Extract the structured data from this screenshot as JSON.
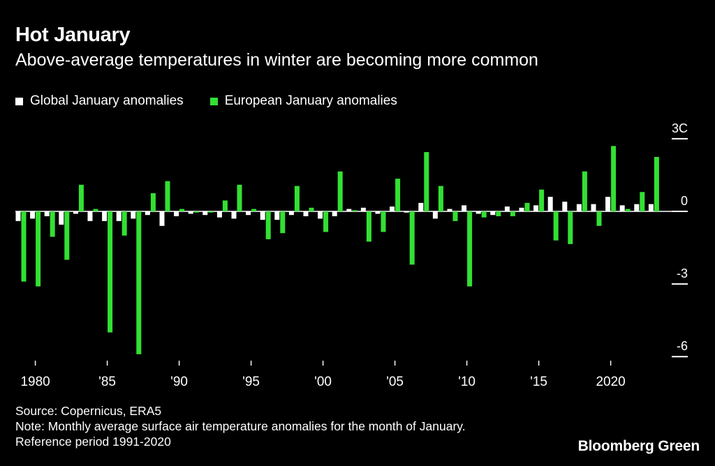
{
  "title": "Hot January",
  "subtitle": "Above-average temperatures in winter are becoming more common",
  "legend": {
    "global": "Global January anomalies",
    "europe": "European January anomalies"
  },
  "colors": {
    "global": "#ffffff",
    "europe": "#33e033",
    "background": "#000000"
  },
  "footer": {
    "source": "Source: Copernicus, ERA5",
    "note": "Note: Monthly average surface air temperature anomalies for the month of January.",
    "reference": "Reference period 1991-2020"
  },
  "brand": "Bloomberg Green",
  "chart_data": {
    "type": "bar",
    "title": "Hot January",
    "ylabel": "",
    "ylim": [
      -6,
      3
    ],
    "y_ticks": [
      {
        "value": 3,
        "label": "3C"
      },
      {
        "value": 0,
        "label": "0"
      },
      {
        "value": -3,
        "label": "-3"
      },
      {
        "value": -6,
        "label": "-6"
      }
    ],
    "x_ticks": [
      {
        "year": 1980,
        "label": "1980"
      },
      {
        "year": 1985,
        "label": "'85"
      },
      {
        "year": 1990,
        "label": "'90"
      },
      {
        "year": 1995,
        "label": "'95"
      },
      {
        "year": 2000,
        "label": "'00"
      },
      {
        "year": 2005,
        "label": "'05"
      },
      {
        "year": 2010,
        "label": "'10"
      },
      {
        "year": 2015,
        "label": "'15"
      },
      {
        "year": 2020,
        "label": "2020"
      }
    ],
    "categories": [
      1979,
      1980,
      1981,
      1982,
      1983,
      1984,
      1985,
      1986,
      1987,
      1988,
      1989,
      1990,
      1991,
      1992,
      1993,
      1994,
      1995,
      1996,
      1997,
      1998,
      1999,
      2000,
      2001,
      2002,
      2003,
      2004,
      2005,
      2006,
      2007,
      2008,
      2009,
      2010,
      2011,
      2012,
      2013,
      2014,
      2015,
      2016,
      2017,
      2018,
      2019,
      2020,
      2021,
      2022,
      2023
    ],
    "series": [
      {
        "name": "Global January anomalies",
        "values": [
          -0.4,
          -0.3,
          -0.2,
          -0.55,
          -0.1,
          -0.4,
          -0.4,
          -0.4,
          -0.3,
          -0.15,
          -0.6,
          -0.2,
          -0.1,
          -0.15,
          -0.25,
          -0.3,
          -0.15,
          -0.35,
          -0.35,
          -0.15,
          -0.2,
          -0.3,
          -0.2,
          0.1,
          0.15,
          -0.1,
          0.2,
          -0.05,
          0.35,
          -0.3,
          0.1,
          0.25,
          -0.1,
          -0.15,
          0.2,
          0.15,
          0.25,
          0.6,
          0.4,
          0.3,
          0.3,
          0.6,
          0.25,
          0.3,
          0.3
        ]
      },
      {
        "name": "European January anomalies",
        "values": [
          -2.9,
          -3.1,
          -1.05,
          -2.0,
          1.1,
          0.1,
          -5.0,
          -1.0,
          -5.9,
          0.75,
          1.25,
          0.1,
          -0.05,
          -0.05,
          0.45,
          1.1,
          0.1,
          -1.15,
          -0.9,
          1.05,
          0.15,
          -0.85,
          1.65,
          0.05,
          -1.25,
          -0.85,
          1.35,
          -2.2,
          2.45,
          1.05,
          -0.4,
          -3.1,
          -0.25,
          -0.2,
          -0.2,
          0.35,
          0.9,
          -1.2,
          -1.35,
          1.65,
          -0.6,
          2.7,
          0.1,
          0.8,
          2.25
        ]
      }
    ]
  }
}
